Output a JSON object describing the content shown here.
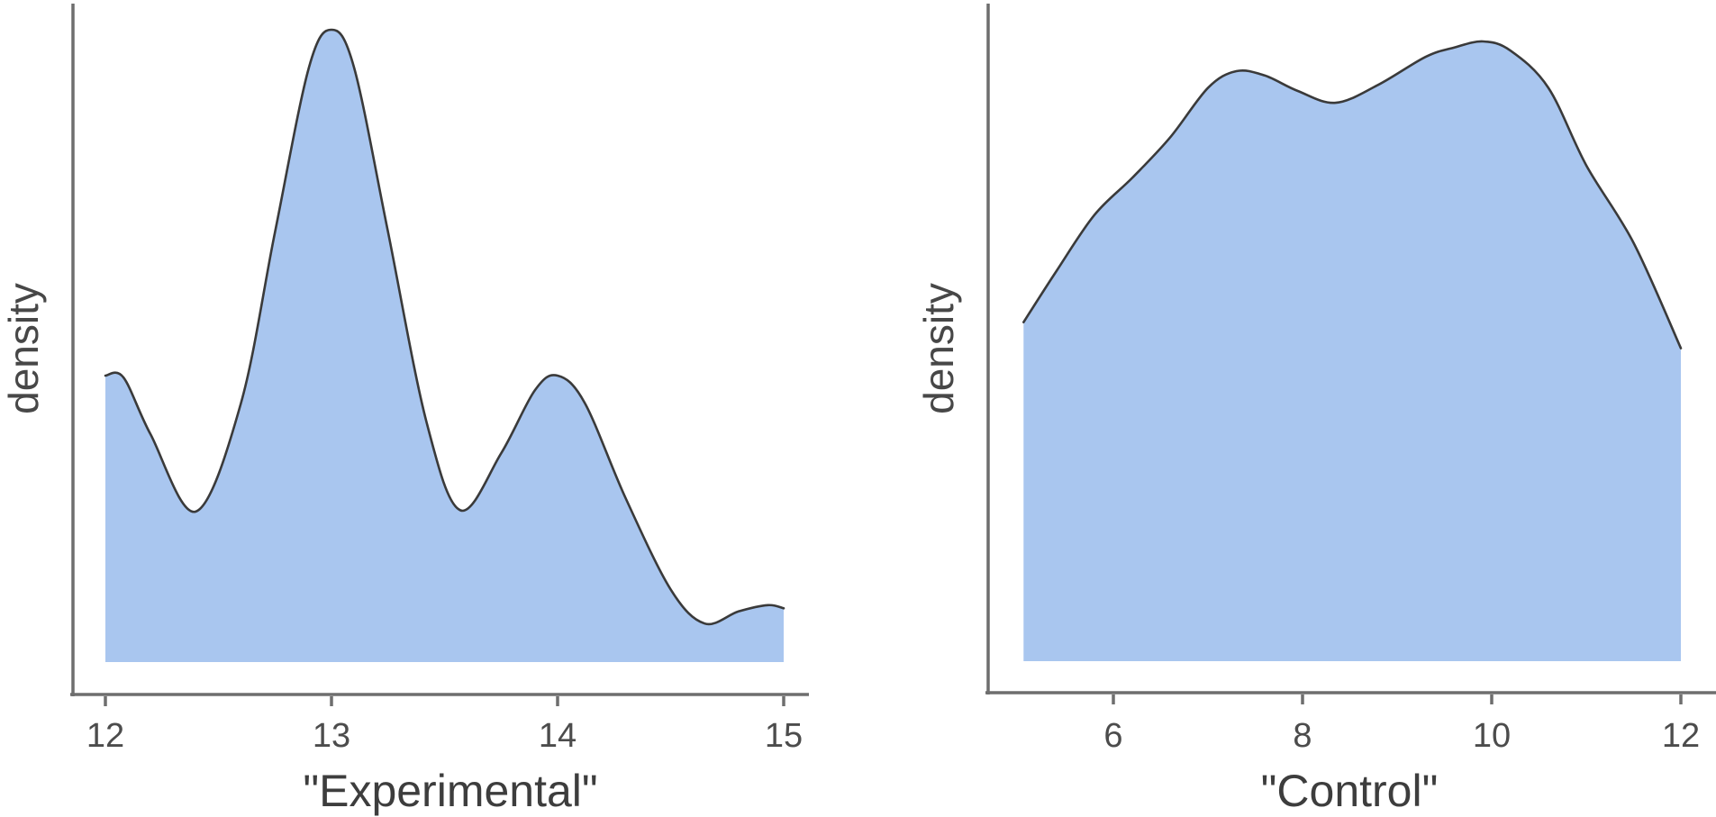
{
  "figure": {
    "background": "#ffffff",
    "description": "Two kernel density plots side by side"
  },
  "chart_data": {
    "type": "area",
    "subtype": "kernel-density",
    "grid": false,
    "legend": "none",
    "panels": [
      {
        "xlabel": "\"Experimental\"",
        "ylabel": "density",
        "x_domain": [
          12,
          15
        ],
        "x_ticks": [
          {
            "value": 12,
            "label": "12"
          },
          {
            "value": 13,
            "label": "13"
          },
          {
            "value": 14,
            "label": "14"
          },
          {
            "value": 15,
            "label": "15"
          }
        ],
        "y_ticks": [],
        "fill_color": "#a9c6ef",
        "line_color": "#3a3a3a",
        "axis_color": "#6e6e6e",
        "series": {
          "x": [
            12.0,
            12.08,
            12.2,
            12.4,
            12.6,
            12.75,
            12.9,
            13.0,
            13.1,
            13.25,
            13.42,
            13.57,
            13.75,
            13.9,
            14.0,
            14.12,
            14.3,
            14.5,
            14.65,
            14.8,
            14.93,
            15.0
          ],
          "density": [
            0.453,
            0.45,
            0.36,
            0.238,
            0.41,
            0.68,
            0.94,
            1.0,
            0.94,
            0.68,
            0.38,
            0.24,
            0.33,
            0.43,
            0.453,
            0.41,
            0.26,
            0.115,
            0.061,
            0.08,
            0.09,
            0.085
          ]
        },
        "peaks": [
          {
            "x": 12.0,
            "density": 0.45
          },
          {
            "x": 13.0,
            "density": 1.0
          },
          {
            "x": 14.0,
            "density": 0.45
          },
          {
            "x": 14.93,
            "density": 0.09
          }
        ],
        "valleys": [
          {
            "x": 12.4,
            "density": 0.24
          },
          {
            "x": 13.57,
            "density": 0.24
          },
          {
            "x": 14.65,
            "density": 0.06
          }
        ]
      },
      {
        "xlabel": "\"Control\"",
        "ylabel": "density",
        "x_domain": [
          5.05,
          12
        ],
        "x_ticks": [
          {
            "value": 6,
            "label": "6"
          },
          {
            "value": 8,
            "label": "8"
          },
          {
            "value": 10,
            "label": "10"
          },
          {
            "value": 12,
            "label": "12"
          }
        ],
        "y_ticks": [],
        "fill_color": "#a9c6ef",
        "line_color": "#3a3a3a",
        "axis_color": "#6e6e6e",
        "series": {
          "x": [
            5.05,
            5.4,
            5.8,
            6.2,
            6.6,
            7.0,
            7.3,
            7.6,
            7.95,
            8.35,
            8.8,
            9.3,
            9.6,
            9.91,
            10.2,
            10.6,
            11.0,
            11.5,
            12.0
          ],
          "density": [
            0.547,
            0.63,
            0.72,
            0.78,
            0.845,
            0.925,
            0.952,
            0.945,
            0.92,
            0.901,
            0.93,
            0.975,
            0.99,
            1.0,
            0.985,
            0.925,
            0.8,
            0.675,
            0.505
          ]
        },
        "peaks": [
          {
            "x": 7.3,
            "density": 0.95
          },
          {
            "x": 9.9,
            "density": 1.0
          }
        ],
        "valleys": [
          {
            "x": 8.35,
            "density": 0.9
          }
        ]
      }
    ]
  }
}
